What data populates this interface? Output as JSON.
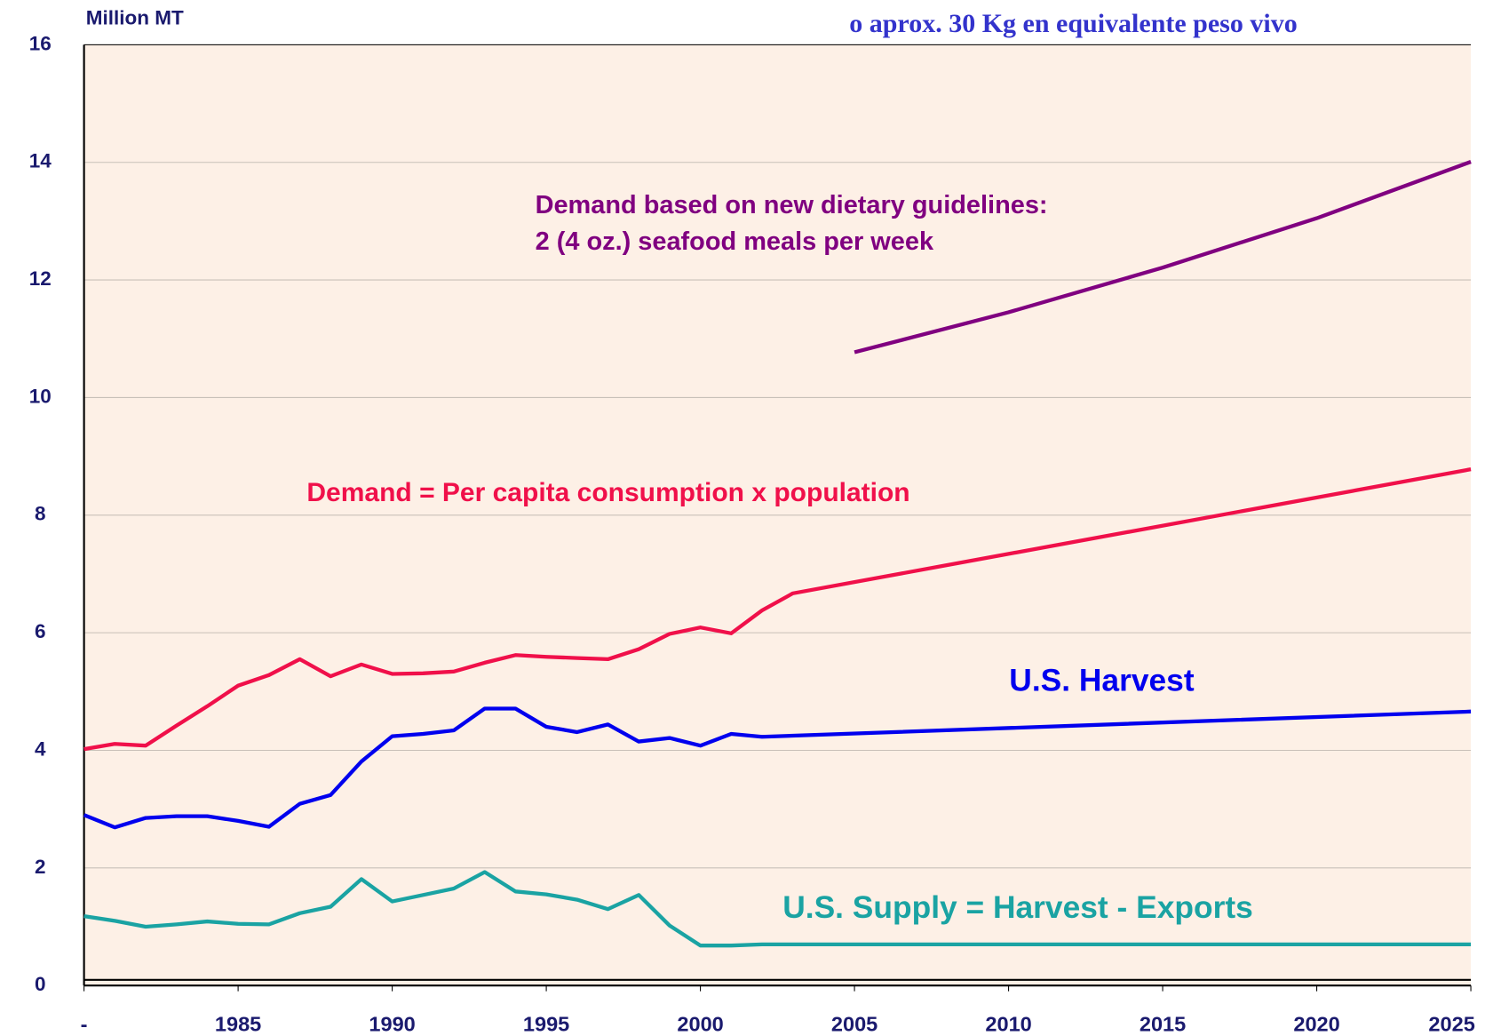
{
  "chart_data": {
    "type": "line",
    "y_axis_label": "Million MT",
    "header_note": "o  aprox. 30 Kg en equivalente peso vivo",
    "xlim": [
      1980,
      2025
    ],
    "xticks": [
      {
        "value": 1980,
        "label": "-"
      },
      1985,
      1990,
      1995,
      2000,
      2005,
      2010,
      2015,
      2020,
      2025
    ],
    "ylim": [
      0,
      16
    ],
    "yticks": [
      0,
      2,
      4,
      6,
      8,
      10,
      12,
      14,
      16
    ],
    "grid": true,
    "series": [
      {
        "name": "Demand based on new dietary guidelines:",
        "name_line2": "2 (4 oz.) seafood meals per week",
        "color": "#800080",
        "x": [
          2005,
          2010,
          2015,
          2020,
          2025
        ],
        "values": [
          10.77,
          11.45,
          12.21,
          13.05,
          14.01
        ]
      },
      {
        "name": "Demand = Per capita consumption x population",
        "color": "#f0104a",
        "x": [
          1980,
          1981,
          1982,
          1983,
          1984,
          1985,
          1986,
          1987,
          1988,
          1989,
          1990,
          1991,
          1992,
          1993,
          1994,
          1995,
          1996,
          1997,
          1998,
          1999,
          2000,
          2001,
          2002,
          2003,
          2025
        ],
        "values": [
          4.02,
          4.11,
          4.08,
          4.42,
          4.75,
          5.1,
          5.28,
          5.55,
          5.26,
          5.46,
          5.3,
          5.31,
          5.34,
          5.49,
          5.62,
          5.59,
          5.57,
          5.55,
          5.72,
          5.98,
          6.09,
          5.99,
          6.38,
          6.67,
          8.78
        ]
      },
      {
        "name": "U.S. Harvest",
        "color": "#0000ee",
        "x": [
          1980,
          1981,
          1982,
          1983,
          1984,
          1985,
          1986,
          1987,
          1988,
          1989,
          1990,
          1991,
          1992,
          1993,
          1994,
          1995,
          1996,
          1997,
          1998,
          1999,
          2000,
          2001,
          2002,
          2025
        ],
        "values": [
          2.9,
          2.69,
          2.85,
          2.88,
          2.88,
          2.8,
          2.7,
          3.09,
          3.24,
          3.81,
          4.24,
          4.28,
          4.34,
          4.71,
          4.71,
          4.4,
          4.31,
          4.44,
          4.15,
          4.21,
          4.08,
          4.28,
          4.23,
          4.66
        ]
      },
      {
        "name": "U.S. Supply = Harvest - Exports",
        "color": "#1aa3a3",
        "x": [
          1980,
          1981,
          1982,
          1983,
          1984,
          1985,
          1986,
          1987,
          1988,
          1989,
          1990,
          1991,
          1992,
          1993,
          1994,
          1995,
          1996,
          1997,
          1998,
          1999,
          2000,
          2001,
          2002,
          2025
        ],
        "values": [
          1.18,
          1.1,
          1.0,
          1.04,
          1.09,
          1.05,
          1.04,
          1.23,
          1.34,
          1.81,
          1.43,
          1.54,
          1.65,
          1.93,
          1.6,
          1.55,
          1.46,
          1.3,
          1.54,
          1.02,
          0.68,
          0.68,
          0.7,
          0.7
        ]
      }
    ]
  }
}
